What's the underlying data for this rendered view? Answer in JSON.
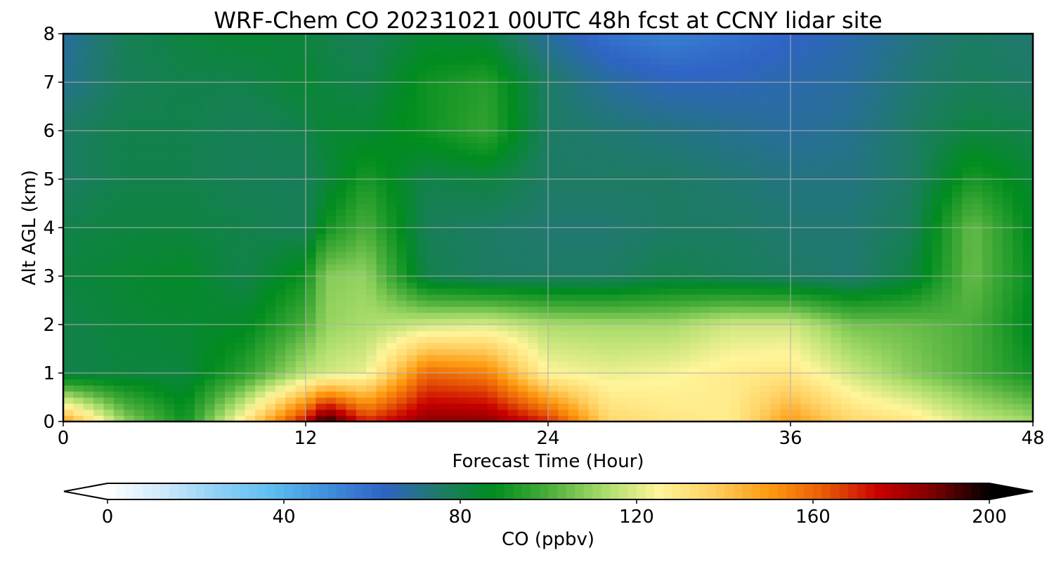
{
  "chart_data": {
    "type": "heatmap",
    "title": "WRF-Chem CO  20231021 00UTC 48h fcst at CCNY lidar site",
    "xlabel": "Forecast Time (Hour)",
    "ylabel": "Alt AGL (km)",
    "xlim": [
      0,
      48
    ],
    "ylim": [
      0,
      8
    ],
    "x_ticks": [
      0,
      12,
      24,
      36,
      48
    ],
    "y_ticks": [
      0,
      1,
      2,
      3,
      4,
      5,
      6,
      7,
      8
    ],
    "grid": true,
    "colorbar": {
      "label": "CO  (ppbv)",
      "range": [
        0,
        200
      ],
      "ticks": [
        0,
        40,
        80,
        120,
        160,
        200
      ],
      "extend": "both",
      "colors": [
        "#ffffff",
        "#cfe9fb",
        "#8fd0f6",
        "#5dbdf0",
        "#3e8edc",
        "#2f64c4",
        "#1f7a6a",
        "#008c1e",
        "#4aae3a",
        "#a8dc6a",
        "#fff59a",
        "#ffcf60",
        "#ff9a10",
        "#e85a06",
        "#c80000",
        "#7a0000",
        "#000000"
      ]
    },
    "time_hours": [
      0,
      3,
      6,
      9,
      12,
      13,
      15,
      18,
      21,
      24,
      27,
      30,
      33,
      36,
      39,
      42,
      45,
      48
    ],
    "series": [
      {
        "name": "0 km",
        "values": [
          150,
          110,
          90,
          130,
          175,
          200,
          170,
          185,
          185,
          170,
          135,
          130,
          128,
          150,
          135,
          130,
          118,
          112
        ]
      },
      {
        "name": "1 km",
        "values": [
          80,
          82,
          82,
          95,
          115,
          118,
          122,
          160,
          155,
          125,
          122,
          124,
          128,
          130,
          118,
          108,
          100,
          90
        ]
      },
      {
        "name": "2 km",
        "values": [
          80,
          83,
          84,
          86,
          100,
          110,
          113,
          118,
          120,
          113,
          112,
          112,
          118,
          118,
          106,
          104,
          100,
          86
        ]
      },
      {
        "name": "3 km",
        "values": [
          82,
          84,
          86,
          80,
          90,
          108,
          110,
          80,
          76,
          76,
          76,
          80,
          78,
          76,
          74,
          82,
          104,
          88
        ]
      },
      {
        "name": "4 km",
        "values": [
          80,
          82,
          82,
          80,
          78,
          90,
          100,
          78,
          76,
          74,
          74,
          76,
          76,
          74,
          74,
          78,
          104,
          86
        ]
      },
      {
        "name": "5 km",
        "values": [
          76,
          80,
          80,
          78,
          78,
          82,
          92,
          80,
          82,
          76,
          76,
          76,
          74,
          72,
          72,
          76,
          92,
          84
        ]
      },
      {
        "name": "6 km",
        "values": [
          76,
          80,
          80,
          78,
          80,
          84,
          84,
          90,
          96,
          76,
          74,
          72,
          70,
          68,
          70,
          76,
          82,
          80
        ]
      },
      {
        "name": "7 km",
        "values": [
          70,
          78,
          80,
          80,
          84,
          82,
          80,
          90,
          94,
          76,
          68,
          64,
          64,
          66,
          68,
          74,
          78,
          76
        ]
      },
      {
        "name": "8 km",
        "values": [
          68,
          78,
          82,
          84,
          82,
          80,
          78,
          84,
          82,
          68,
          58,
          54,
          58,
          62,
          66,
          72,
          76,
          74
        ]
      }
    ]
  }
}
